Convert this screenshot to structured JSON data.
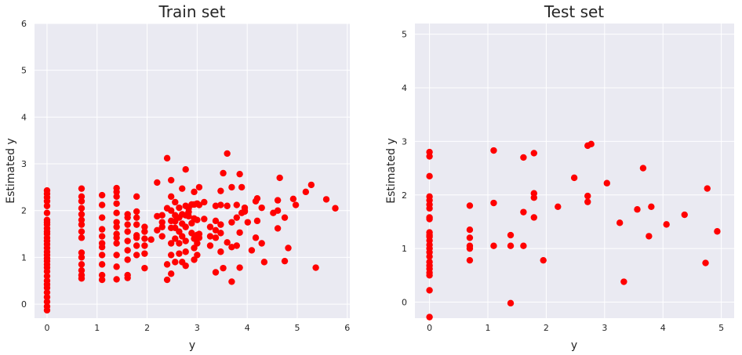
{
  "point_color": "#ff0000",
  "chart_data": [
    {
      "type": "scatter",
      "title": "Train set",
      "xlabel": "y",
      "ylabel": "Estimated y",
      "xlim": [
        -0.25,
        6.05
      ],
      "ylim": [
        -0.3,
        6.0
      ],
      "xticks": [
        0,
        1,
        2,
        3,
        4,
        5,
        6
      ],
      "yticks": [
        0,
        1,
        2,
        3,
        4,
        5,
        6
      ],
      "grid": true,
      "points": [
        [
          0,
          2.43
        ],
        [
          0,
          2.36
        ],
        [
          0,
          2.28
        ],
        [
          0,
          2.2
        ],
        [
          0,
          2.1
        ],
        [
          0,
          1.95
        ],
        [
          0,
          1.8
        ],
        [
          0,
          1.75
        ],
        [
          0,
          1.7
        ],
        [
          0,
          1.62
        ],
        [
          0,
          1.55
        ],
        [
          0,
          1.5
        ],
        [
          0,
          1.42
        ],
        [
          0,
          1.35
        ],
        [
          0,
          1.28
        ],
        [
          0,
          1.2
        ],
        [
          0,
          1.12
        ],
        [
          0,
          1.05
        ],
        [
          0,
          0.98
        ],
        [
          0,
          0.92
        ],
        [
          0,
          0.85
        ],
        [
          0,
          0.78
        ],
        [
          0,
          0.7
        ],
        [
          0,
          0.6
        ],
        [
          0,
          0.5
        ],
        [
          0,
          0.42
        ],
        [
          0,
          0.35
        ],
        [
          0,
          0.25
        ],
        [
          0,
          0.15
        ],
        [
          0,
          0.05
        ],
        [
          0,
          -0.05
        ],
        [
          0,
          -0.13
        ],
        [
          0.69,
          2.47
        ],
        [
          0.69,
          2.3
        ],
        [
          0.69,
          2.2
        ],
        [
          0.69,
          2.05
        ],
        [
          0.69,
          1.92
        ],
        [
          0.69,
          1.8
        ],
        [
          0.69,
          1.7
        ],
        [
          0.69,
          1.55
        ],
        [
          0.69,
          1.42
        ],
        [
          0.69,
          1.1
        ],
        [
          0.69,
          1.0
        ],
        [
          0.69,
          0.85
        ],
        [
          0.69,
          0.72
        ],
        [
          0.69,
          0.62
        ],
        [
          0.69,
          0.55
        ],
        [
          1.1,
          2.33
        ],
        [
          1.1,
          2.12
        ],
        [
          1.1,
          1.85
        ],
        [
          1.1,
          1.6
        ],
        [
          1.1,
          1.45
        ],
        [
          1.1,
          1.3
        ],
        [
          1.1,
          1.22
        ],
        [
          1.1,
          1.05
        ],
        [
          1.1,
          0.85
        ],
        [
          1.1,
          0.62
        ],
        [
          1.1,
          0.52
        ],
        [
          1.39,
          2.48
        ],
        [
          1.39,
          2.4
        ],
        [
          1.39,
          2.3
        ],
        [
          1.39,
          2.15
        ],
        [
          1.39,
          1.95
        ],
        [
          1.39,
          1.75
        ],
        [
          1.39,
          1.65
        ],
        [
          1.39,
          1.5
        ],
        [
          1.39,
          1.42
        ],
        [
          1.39,
          1.3
        ],
        [
          1.39,
          1.05
        ],
        [
          1.39,
          0.8
        ],
        [
          1.39,
          0.53
        ],
        [
          1.61,
          1.92
        ],
        [
          1.61,
          1.85
        ],
        [
          1.61,
          1.7
        ],
        [
          1.61,
          1.55
        ],
        [
          1.61,
          1.35
        ],
        [
          1.61,
          1.15
        ],
        [
          1.61,
          0.95
        ],
        [
          1.61,
          0.62
        ],
        [
          1.61,
          0.56
        ],
        [
          1.79,
          2.3
        ],
        [
          1.79,
          1.98
        ],
        [
          1.79,
          1.85
        ],
        [
          1.79,
          1.7
        ],
        [
          1.79,
          1.47
        ],
        [
          1.79,
          1.42
        ],
        [
          1.79,
          1.25
        ],
        [
          1.79,
          1.05
        ],
        [
          1.95,
          1.65
        ],
        [
          1.95,
          1.55
        ],
        [
          1.95,
          1.4
        ],
        [
          1.95,
          1.25
        ],
        [
          1.95,
          1.08
        ],
        [
          1.95,
          0.77
        ],
        [
          2.08,
          1.38
        ],
        [
          2.2,
          2.6
        ],
        [
          2.2,
          1.88
        ],
        [
          2.2,
          1.58
        ],
        [
          2.3,
          1.9
        ],
        [
          2.3,
          1.75
        ],
        [
          2.3,
          1.65
        ],
        [
          2.3,
          1.45
        ],
        [
          2.4,
          3.12
        ],
        [
          2.4,
          2.05
        ],
        [
          2.4,
          0.85
        ],
        [
          2.4,
          0.52
        ],
        [
          2.48,
          2.65
        ],
        [
          2.48,
          2.3
        ],
        [
          2.48,
          2.0
        ],
        [
          2.48,
          1.78
        ],
        [
          2.48,
          1.63
        ],
        [
          2.48,
          1.3
        ],
        [
          2.48,
          1.05
        ],
        [
          2.48,
          0.65
        ],
        [
          2.56,
          2.18
        ],
        [
          2.56,
          1.9
        ],
        [
          2.56,
          1.77
        ],
        [
          2.56,
          1.63
        ],
        [
          2.56,
          1.4
        ],
        [
          2.56,
          0.9
        ],
        [
          2.64,
          2.06
        ],
        [
          2.64,
          1.85
        ],
        [
          2.64,
          1.55
        ],
        [
          2.64,
          1.3
        ],
        [
          2.64,
          1.08
        ],
        [
          2.7,
          2.47
        ],
        [
          2.7,
          1.92
        ],
        [
          2.7,
          1.72
        ],
        [
          2.7,
          1.45
        ],
        [
          2.7,
          0.9
        ],
        [
          2.77,
          2.88
        ],
        [
          2.77,
          2.1
        ],
        [
          2.77,
          1.9
        ],
        [
          2.77,
          1.65
        ],
        [
          2.77,
          1.35
        ],
        [
          2.77,
          1.12
        ],
        [
          2.77,
          0.82
        ],
        [
          2.83,
          2.05
        ],
        [
          2.83,
          1.97
        ],
        [
          2.83,
          1.88
        ],
        [
          2.89,
          2.13
        ],
        [
          2.89,
          1.73
        ],
        [
          2.89,
          1.52
        ],
        [
          2.94,
          2.4
        ],
        [
          2.94,
          2.13
        ],
        [
          2.94,
          1.83
        ],
        [
          2.94,
          1.4
        ],
        [
          2.94,
          1.2
        ],
        [
          2.94,
          0.95
        ],
        [
          3.0,
          2.15
        ],
        [
          3.0,
          1.8
        ],
        [
          3.0,
          1.48
        ],
        [
          3.0,
          1.3
        ],
        [
          3.0,
          1.05
        ],
        [
          3.04,
          2.5
        ],
        [
          3.04,
          2.12
        ],
        [
          3.04,
          1.5
        ],
        [
          3.04,
          1.42
        ],
        [
          3.14,
          2.18
        ],
        [
          3.14,
          1.82
        ],
        [
          3.26,
          1.65
        ],
        [
          3.26,
          1.45
        ],
        [
          3.26,
          1.25
        ],
        [
          3.37,
          2.1
        ],
        [
          3.37,
          1.78
        ],
        [
          3.37,
          1.58
        ],
        [
          3.37,
          1.42
        ],
        [
          3.37,
          0.68
        ],
        [
          3.47,
          2.42
        ],
        [
          3.47,
          2.12
        ],
        [
          3.47,
          1.7
        ],
        [
          3.47,
          1.52
        ],
        [
          3.47,
          1.12
        ],
        [
          3.52,
          2.8
        ],
        [
          3.52,
          0.77
        ],
        [
          3.6,
          3.22
        ],
        [
          3.6,
          2.1
        ],
        [
          3.6,
          1.32
        ],
        [
          3.69,
          2.5
        ],
        [
          3.69,
          1.75
        ],
        [
          3.69,
          1.22
        ],
        [
          3.69,
          0.48
        ],
        [
          3.79,
          2.12
        ],
        [
          3.79,
          1.85
        ],
        [
          3.79,
          1.25
        ],
        [
          3.85,
          2.78
        ],
        [
          3.85,
          1.53
        ],
        [
          3.85,
          0.78
        ],
        [
          3.89,
          2.5
        ],
        [
          3.89,
          1.95
        ],
        [
          3.95,
          2.06
        ],
        [
          3.95,
          2.0
        ],
        [
          3.95,
          1.98
        ],
        [
          4.01,
          1.75
        ],
        [
          4.09,
          1.15
        ],
        [
          4.17,
          2.2
        ],
        [
          4.17,
          1.42
        ],
        [
          4.2,
          2.26
        ],
        [
          4.2,
          1.78
        ],
        [
          4.29,
          2.06
        ],
        [
          4.29,
          1.3
        ],
        [
          4.34,
          0.9
        ],
        [
          4.52,
          1.95
        ],
        [
          4.61,
          2.22
        ],
        [
          4.61,
          2.0
        ],
        [
          4.61,
          1.62
        ],
        [
          4.65,
          2.7
        ],
        [
          4.75,
          1.85
        ],
        [
          4.75,
          0.92
        ],
        [
          4.82,
          1.2
        ],
        [
          4.92,
          2.25
        ],
        [
          4.97,
          2.12
        ],
        [
          5.17,
          2.4
        ],
        [
          5.28,
          2.55
        ],
        [
          5.37,
          0.78
        ],
        [
          5.58,
          2.24
        ],
        [
          5.76,
          2.05
        ]
      ]
    },
    {
      "type": "scatter",
      "title": "Test set",
      "xlabel": "y",
      "ylabel": "Estimated y",
      "xlim": [
        -0.25,
        5.22
      ],
      "ylim": [
        -0.3,
        5.2
      ],
      "xticks": [
        0,
        1,
        2,
        3,
        4,
        5
      ],
      "yticks": [
        0,
        1,
        2,
        3,
        4,
        5
      ],
      "grid": true,
      "points": [
        [
          0,
          2.8
        ],
        [
          0,
          2.72
        ],
        [
          0,
          2.35
        ],
        [
          0,
          1.97
        ],
        [
          0,
          1.9
        ],
        [
          0,
          1.82
        ],
        [
          0,
          1.75
        ],
        [
          0,
          1.58
        ],
        [
          0,
          1.55
        ],
        [
          0,
          1.3
        ],
        [
          0,
          1.22
        ],
        [
          0,
          1.15
        ],
        [
          0,
          1.07
        ],
        [
          0,
          1.0
        ],
        [
          0,
          0.93
        ],
        [
          0,
          0.85
        ],
        [
          0,
          0.75
        ],
        [
          0,
          0.68
        ],
        [
          0,
          0.62
        ],
        [
          0,
          0.55
        ],
        [
          0,
          0.5
        ],
        [
          0,
          0.22
        ],
        [
          0,
          -0.28
        ],
        [
          0.69,
          1.8
        ],
        [
          0.69,
          1.35
        ],
        [
          0,
          1.25
        ],
        [
          0.69,
          1.2
        ],
        [
          0.69,
          1.05
        ],
        [
          0.69,
          1.0
        ],
        [
          0.69,
          0.78
        ],
        [
          1.1,
          2.83
        ],
        [
          1.1,
          1.85
        ],
        [
          1.1,
          1.05
        ],
        [
          1.39,
          1.25
        ],
        [
          1.39,
          1.05
        ],
        [
          1.39,
          -0.02
        ],
        [
          1.61,
          2.7
        ],
        [
          1.61,
          1.68
        ],
        [
          1.61,
          1.05
        ],
        [
          1.79,
          2.78
        ],
        [
          1.79,
          2.03
        ],
        [
          1.79,
          1.95
        ],
        [
          1.79,
          1.58
        ],
        [
          1.95,
          0.78
        ],
        [
          2.2,
          1.78
        ],
        [
          2.48,
          2.32
        ],
        [
          2.71,
          2.92
        ],
        [
          2.71,
          1.98
        ],
        [
          2.71,
          1.87
        ],
        [
          2.77,
          2.95
        ],
        [
          3.04,
          2.22
        ],
        [
          3.26,
          1.48
        ],
        [
          3.33,
          0.38
        ],
        [
          3.56,
          1.73
        ],
        [
          3.66,
          2.5
        ],
        [
          3.76,
          1.23
        ],
        [
          3.8,
          1.78
        ],
        [
          4.06,
          1.45
        ],
        [
          4.37,
          1.63
        ],
        [
          4.73,
          0.73
        ],
        [
          4.76,
          2.12
        ],
        [
          4.93,
          1.32
        ]
      ]
    }
  ]
}
